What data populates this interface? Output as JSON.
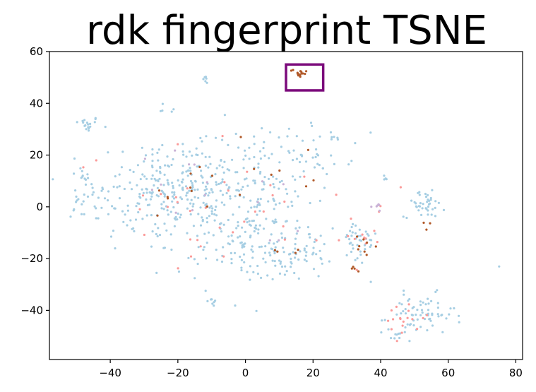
{
  "chart_data": {
    "type": "scatter",
    "title": "rdk fingerprint TSNE",
    "xlabel": "",
    "ylabel": "",
    "xlim": [
      -58,
      82
    ],
    "ylim": [
      -59,
      60
    ],
    "x_ticks": [
      -40,
      -20,
      0,
      20,
      40,
      60,
      80
    ],
    "y_ticks": [
      -40,
      -20,
      0,
      20,
      40,
      60
    ],
    "x_tick_labels": [
      "−40",
      "−20",
      "0",
      "20",
      "40",
      "60",
      "80"
    ],
    "y_tick_labels": [
      "−40",
      "−20",
      "0",
      "20",
      "40",
      "60"
    ],
    "grid": false,
    "legend": false,
    "highlight_box": {
      "x0": 12,
      "x1": 23,
      "y0": 45,
      "y1": 55,
      "color": "#7b0a7b"
    },
    "colors": {
      "light_blue": "#a6cee3",
      "salmon": "#fb9a99",
      "lilac": "#cab2d6",
      "brown": "#b15928"
    },
    "clusters": [
      {
        "color": "light_blue",
        "cx": -47,
        "cy": 32,
        "sx": 2,
        "sy": 1.5,
        "n": 18
      },
      {
        "color": "light_blue",
        "cx": -48,
        "cy": 12,
        "sx": 1.5,
        "sy": 2,
        "n": 10
      },
      {
        "color": "light_blue",
        "cx": -45,
        "cy": 2,
        "sx": 4,
        "sy": 4,
        "n": 25
      },
      {
        "color": "light_blue",
        "cx": -30,
        "cy": 5,
        "sx": 8,
        "sy": 12,
        "n": 110
      },
      {
        "color": "light_blue",
        "cx": -17,
        "cy": 8,
        "sx": 6,
        "sy": 8,
        "n": 130
      },
      {
        "color": "light_blue",
        "cx": -5,
        "cy": 0,
        "sx": 9,
        "sy": 14,
        "n": 120
      },
      {
        "color": "light_blue",
        "cx": 8,
        "cy": 5,
        "sx": 8,
        "sy": 12,
        "n": 100
      },
      {
        "color": "light_blue",
        "cx": -12,
        "cy": 49,
        "sx": 1.5,
        "sy": 1,
        "n": 6
      },
      {
        "color": "light_blue",
        "cx": -22,
        "cy": 38,
        "sx": 1.5,
        "sy": 1,
        "n": 5
      },
      {
        "color": "light_blue",
        "cx": 22,
        "cy": 22,
        "sx": 5,
        "sy": 5,
        "n": 30
      },
      {
        "color": "light_blue",
        "cx": 15,
        "cy": -18,
        "sx": 5,
        "sy": 5,
        "n": 60
      },
      {
        "color": "light_blue",
        "cx": 0,
        "cy": -15,
        "sx": 6,
        "sy": 6,
        "n": 60
      },
      {
        "color": "light_blue",
        "cx": 33,
        "cy": -14,
        "sx": 3,
        "sy": 5,
        "n": 40
      },
      {
        "color": "light_blue",
        "cx": 53,
        "cy": 1,
        "sx": 3,
        "sy": 2.5,
        "n": 40
      },
      {
        "color": "light_blue",
        "cx": 52,
        "cy": -42,
        "sx": 5,
        "sy": 4,
        "n": 70
      },
      {
        "color": "light_blue",
        "cx": 44,
        "cy": -50,
        "sx": 1.5,
        "sy": 1.5,
        "n": 8
      },
      {
        "color": "light_blue",
        "cx": -10,
        "cy": -36,
        "sx": 1.2,
        "sy": 1.2,
        "n": 8
      },
      {
        "color": "light_blue",
        "cx": 41,
        "cy": 11,
        "sx": 0.6,
        "sy": 1,
        "n": 4
      },
      {
        "color": "light_blue",
        "cx": 75,
        "cy": -23,
        "sx": 0.1,
        "sy": 0.1,
        "n": 1
      },
      {
        "color": "light_blue",
        "cx": -52,
        "cy": -3,
        "sx": 0.3,
        "sy": 0.3,
        "n": 1
      },
      {
        "color": "salmon",
        "cx": -20,
        "cy": 0,
        "sx": 15,
        "sy": 15,
        "n": 22
      },
      {
        "color": "salmon",
        "cx": 15,
        "cy": 0,
        "sx": 14,
        "sy": 12,
        "n": 18
      },
      {
        "color": "salmon",
        "cx": 35,
        "cy": -10,
        "sx": 3,
        "sy": 3,
        "n": 10
      },
      {
        "color": "salmon",
        "cx": 47,
        "cy": -43,
        "sx": 3,
        "sy": 4,
        "n": 18
      },
      {
        "color": "lilac",
        "cx": -16,
        "cy": 8,
        "sx": 6,
        "sy": 8,
        "n": 10
      },
      {
        "color": "lilac",
        "cx": 39,
        "cy": 0,
        "sx": 1,
        "sy": 1,
        "n": 6
      },
      {
        "color": "lilac",
        "cx": 5,
        "cy": -5,
        "sx": 8,
        "sy": 10,
        "n": 6
      },
      {
        "color": "brown",
        "cx": 16,
        "cy": 52,
        "sx": 1.5,
        "sy": 1,
        "n": 16
      },
      {
        "color": "brown",
        "cx": -15,
        "cy": 6,
        "sx": 6,
        "sy": 6,
        "n": 10
      },
      {
        "color": "brown",
        "cx": 34,
        "cy": -15,
        "sx": 2,
        "sy": 2,
        "n": 8
      },
      {
        "color": "brown",
        "cx": 10,
        "cy": 10,
        "sx": 10,
        "sy": 12,
        "n": 8
      },
      {
        "color": "brown",
        "cx": 15,
        "cy": -17,
        "sx": 2,
        "sy": 1,
        "n": 4
      },
      {
        "color": "brown",
        "cx": 32,
        "cy": -24,
        "sx": 1,
        "sy": 0.5,
        "n": 4
      },
      {
        "color": "brown",
        "cx": 54,
        "cy": -9,
        "sx": 1,
        "sy": 2,
        "n": 3
      }
    ]
  }
}
